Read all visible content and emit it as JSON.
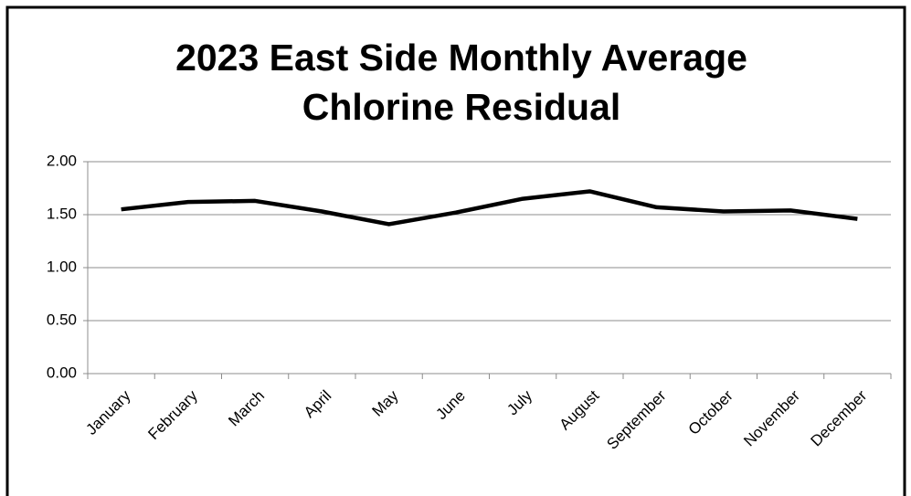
{
  "chart_data": {
    "type": "line",
    "title": "2023 East Side Monthly Average Chlorine Residual",
    "categories": [
      "January",
      "February",
      "March",
      "April",
      "May",
      "June",
      "July",
      "August",
      "September",
      "October",
      "November",
      "December"
    ],
    "values": [
      1.55,
      1.62,
      1.63,
      1.53,
      1.41,
      1.52,
      1.65,
      1.72,
      1.57,
      1.53,
      1.54,
      1.46
    ],
    "color": "#000000",
    "ylim": [
      0,
      2
    ],
    "yticks": [
      {
        "value": 0,
        "label": "0.00"
      },
      {
        "value": 0.5,
        "label": "0.50"
      },
      {
        "value": 1,
        "label": "1.00"
      },
      {
        "value": 1.5,
        "label": "1.50"
      },
      {
        "value": 2,
        "label": "2.00"
      }
    ],
    "grid": true
  }
}
